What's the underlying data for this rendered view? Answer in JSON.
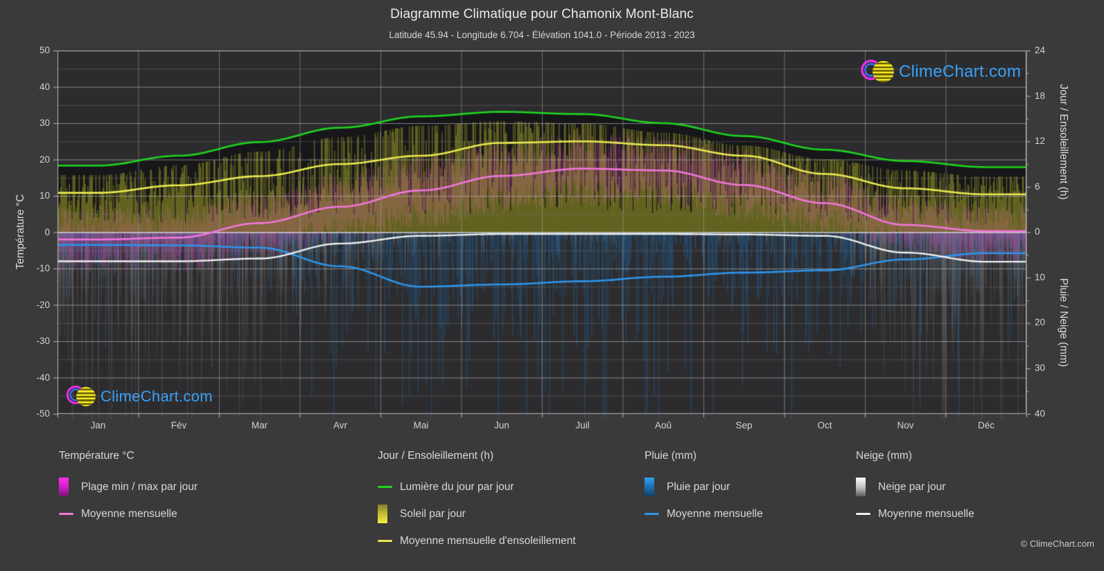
{
  "header": {
    "title": "Diagramme Climatique pour Chamonix Mont-Blanc",
    "subtitle": "Latitude 45.94 - Longitude 6.704 - Élévation 1041.0 - Période 2013 - 2023"
  },
  "watermark": {
    "logo_text": "ClimeChart.com",
    "copyright": "© ClimeChart.com"
  },
  "axes": {
    "left_label": "Température °C",
    "right_top_label": "Jour / Ensoleillement (h)",
    "right_bottom_label": "Pluie / Neige (mm)",
    "temp_ticks": [
      "50",
      "40",
      "30",
      "20",
      "10",
      "0",
      "-10",
      "-20",
      "-30",
      "-40",
      "-50"
    ],
    "hours_ticks": [
      "24",
      "18",
      "12",
      "6",
      "0"
    ],
    "mm_ticks": [
      "10",
      "20",
      "30",
      "40"
    ]
  },
  "chart_data": {
    "type": "line",
    "title": "Diagramme Climatique pour Chamonix Mont-Blanc",
    "categories": [
      "Jan",
      "Fév",
      "Mar",
      "Avr",
      "Mai",
      "Jun",
      "Juil",
      "Aoû",
      "Sep",
      "Oct",
      "Nov",
      "Déc"
    ],
    "daylight_h": [
      8.8,
      10.1,
      11.9,
      13.8,
      15.3,
      15.9,
      15.6,
      14.4,
      12.7,
      10.9,
      9.4,
      8.6
    ],
    "sunshine_avg_h": [
      5.2,
      6.2,
      7.4,
      9.0,
      10.1,
      11.8,
      12.0,
      11.5,
      10.1,
      7.7,
      5.8,
      5.0
    ],
    "temp_avg_c": [
      -2.0,
      -1.5,
      2.5,
      7.0,
      11.5,
      15.5,
      17.5,
      17.0,
      13.0,
      8.0,
      2.0,
      0.3
    ],
    "temp_max_daily_mean_c": [
      3,
      4,
      8,
      12.5,
      17,
      21,
      23.5,
      23,
      19,
      13,
      6.5,
      3.5
    ],
    "temp_min_daily_mean_c": [
      -7,
      -7,
      -3.5,
      0.5,
      5,
      9,
      11,
      10.5,
      7,
      3,
      -2.5,
      -5.5
    ],
    "rain_avg_mm_per_day": [
      2.8,
      2.9,
      3.4,
      7.5,
      12.0,
      11.5,
      10.8,
      9.8,
      8.9,
      8.4,
      6.0,
      4.6
    ],
    "snow_avg_mm_per_day": [
      6.4,
      6.4,
      5.8,
      2.5,
      0.8,
      0.4,
      0.4,
      0.4,
      0.5,
      0.8,
      4.5,
      6.5
    ],
    "series": [
      {
        "name": "Lumière du jour par jour (h)",
        "color": "#1fd41f",
        "axis": "hours",
        "values": [
          8.8,
          10.1,
          11.9,
          13.8,
          15.3,
          15.9,
          15.6,
          14.4,
          12.7,
          10.9,
          9.4,
          8.6
        ]
      },
      {
        "name": "Moyenne mensuelle d'ensoleillement (h)",
        "color": "#e9e950",
        "axis": "hours",
        "values": [
          5.2,
          6.2,
          7.4,
          9.0,
          10.1,
          11.8,
          12.0,
          11.5,
          10.1,
          7.7,
          5.8,
          5.0
        ]
      },
      {
        "name": "Température moyenne mensuelle (°C)",
        "color": "#f277dd",
        "axis": "temp",
        "values": [
          -2.0,
          -1.5,
          2.5,
          7.0,
          11.5,
          15.5,
          17.5,
          17.0,
          13.0,
          8.0,
          2.0,
          0.3
        ]
      },
      {
        "name": "Pluie moyenne mensuelle (mm)",
        "color": "#2e94ea",
        "axis": "mm",
        "values": [
          2.8,
          2.9,
          3.4,
          7.5,
          12.0,
          11.5,
          10.8,
          9.8,
          8.9,
          8.4,
          6.0,
          4.6
        ]
      },
      {
        "name": "Neige moyenne mensuelle (mm)",
        "color": "#f0f0f0",
        "axis": "mm",
        "values": [
          6.4,
          6.4,
          5.8,
          2.5,
          0.8,
          0.4,
          0.4,
          0.4,
          0.5,
          0.8,
          4.5,
          6.5
        ]
      }
    ],
    "ylim_temp": [
      -50,
      50
    ],
    "ylim_hours": [
      0,
      24
    ],
    "ylim_mm_inverted": [
      0,
      40
    ],
    "grid": "on",
    "legend_position": "bottom"
  },
  "legend": {
    "groups": [
      {
        "title": "Température °C",
        "items": [
          {
            "swatch": "magenta-gradient-bar",
            "label": "Plage min / max par jour"
          },
          {
            "swatch": "pink-line",
            "label": "Moyenne mensuelle"
          }
        ]
      },
      {
        "title": "Jour / Ensoleillement (h)",
        "items": [
          {
            "swatch": "green-line",
            "label": "Lumière du jour par jour"
          },
          {
            "swatch": "yellow-gradient-bar",
            "label": "Soleil par jour"
          },
          {
            "swatch": "yellow-line",
            "label": "Moyenne mensuelle d'ensoleillement"
          }
        ]
      },
      {
        "title": "Pluie (mm)",
        "items": [
          {
            "swatch": "blue-gradient-bar",
            "label": "Pluie par jour"
          },
          {
            "swatch": "blue-line",
            "label": "Moyenne mensuelle"
          }
        ]
      },
      {
        "title": "Neige (mm)",
        "items": [
          {
            "swatch": "white-gradient-bar",
            "label": "Neige par jour"
          },
          {
            "swatch": "white-line",
            "label": "Moyenne mensuelle"
          }
        ]
      }
    ]
  },
  "colors": {
    "page_background": "#3a3a3a",
    "plot_background": "#2c2c2e",
    "daylight_fill": "#17171a",
    "daylight_line": "#1fd41f",
    "sunshine_line": "#e9e950",
    "temp_line": "#f277dd",
    "rain_line": "#2e94ea",
    "snow_line": "#f0f0f0",
    "logo_text_blue": "#38a1f8"
  }
}
